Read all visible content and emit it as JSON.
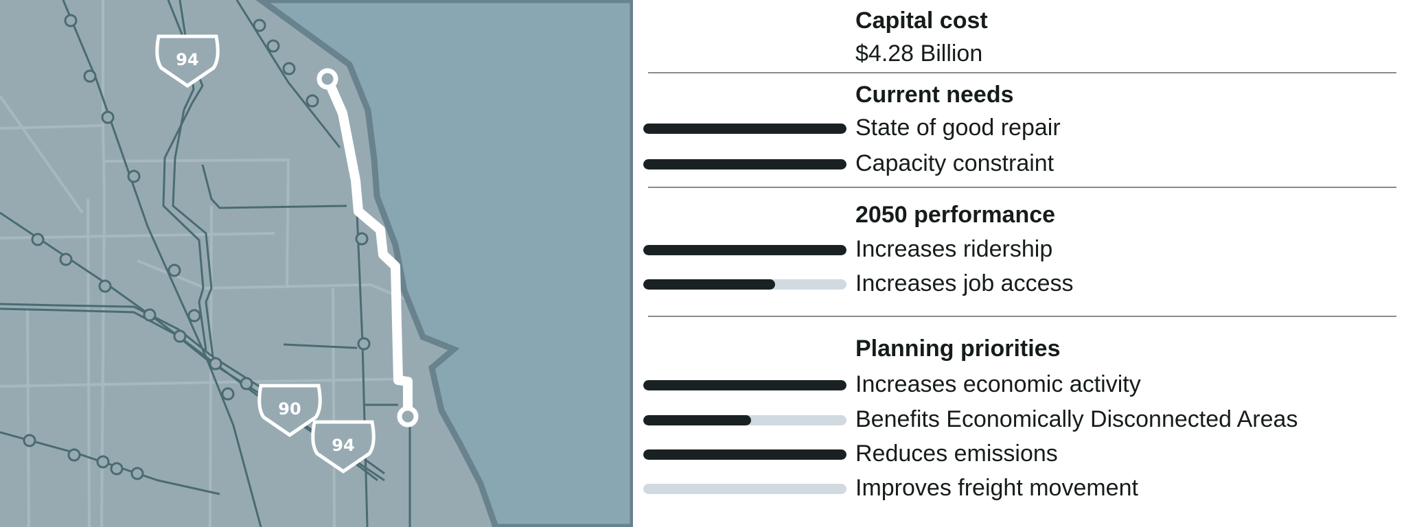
{
  "colors": {
    "land": "#97aab2",
    "lake": "#89a7b2",
    "shore": "#68838d",
    "rail": "#4a6b72",
    "road": "#a7b8bf",
    "route": "#ffffff",
    "bar_fill": "#192123",
    "bar_track": "#d2dae1"
  },
  "map": {
    "shields": [
      {
        "label": "94"
      },
      {
        "label": "90"
      },
      {
        "label": "94"
      }
    ]
  },
  "capital": {
    "heading": "Capital cost",
    "value": "$4.28 Billion"
  },
  "sections": [
    {
      "heading": "Current needs",
      "items": [
        {
          "label": "State of good repair",
          "level": 1
        },
        {
          "label": "Capacity constraint",
          "level": 1
        }
      ]
    },
    {
      "heading": "2050 performance",
      "items": [
        {
          "label": "Increases ridership",
          "level": 1
        },
        {
          "label": "Increases job access",
          "level": 0.65
        }
      ]
    },
    {
      "heading": "Planning priorities",
      "items": [
        {
          "label": "Increases economic activity",
          "level": 1
        },
        {
          "label": "Benefits Economically Disconnected Areas",
          "level": 0.53
        },
        {
          "label": "Reduces emissions",
          "level": 1
        },
        {
          "label": "Improves freight movement",
          "level": 0
        }
      ]
    }
  ]
}
